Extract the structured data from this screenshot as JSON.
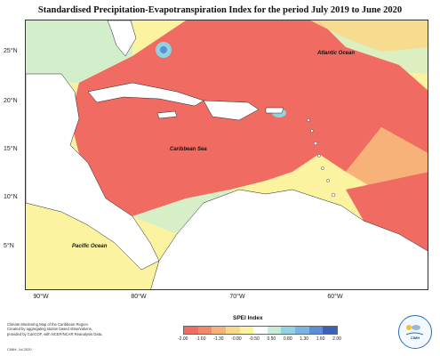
{
  "title": "Standardised Precipitation-Evapotranspiration Index for the period July 2019 to June 2020",
  "map": {
    "y_axis_labels": [
      "25°N",
      "20°N",
      "15°N",
      "10°N",
      "5°N"
    ],
    "x_axis_labels": [
      "90°W",
      "80°W",
      "70°W",
      "60°W"
    ],
    "region_labels": {
      "atlantic": "Atlantic Ocean",
      "caribbean": "Caribbean Sea",
      "pacific": "Pacific Ocean"
    }
  },
  "footer": {
    "note_lines": [
      "Climate Monitoring Map of the Caribbean Region.",
      "Created by aggregating station based observations,",
      "provided by CariCOF, with NCEP/NCAR Reanalysis Data."
    ],
    "credit": "CIMH: Jul 2020"
  },
  "legend": {
    "title": "SPEI Index",
    "ticks": [
      "-2.00",
      "-1.60",
      "-1.30",
      "-0.80",
      "-0.50",
      "0.50",
      "0.80",
      "1.30",
      "1.60",
      "2.00"
    ],
    "colors": [
      "#f06b62",
      "#f4896a",
      "#f7b27a",
      "#f9d98a",
      "#fbf3a0",
      "#ffffff",
      "#c8ecd6",
      "#8fd4e0",
      "#7ab2e2",
      "#5a8fd6",
      "#3c5fb8"
    ]
  },
  "logo": {
    "text": "CIMH"
  }
}
